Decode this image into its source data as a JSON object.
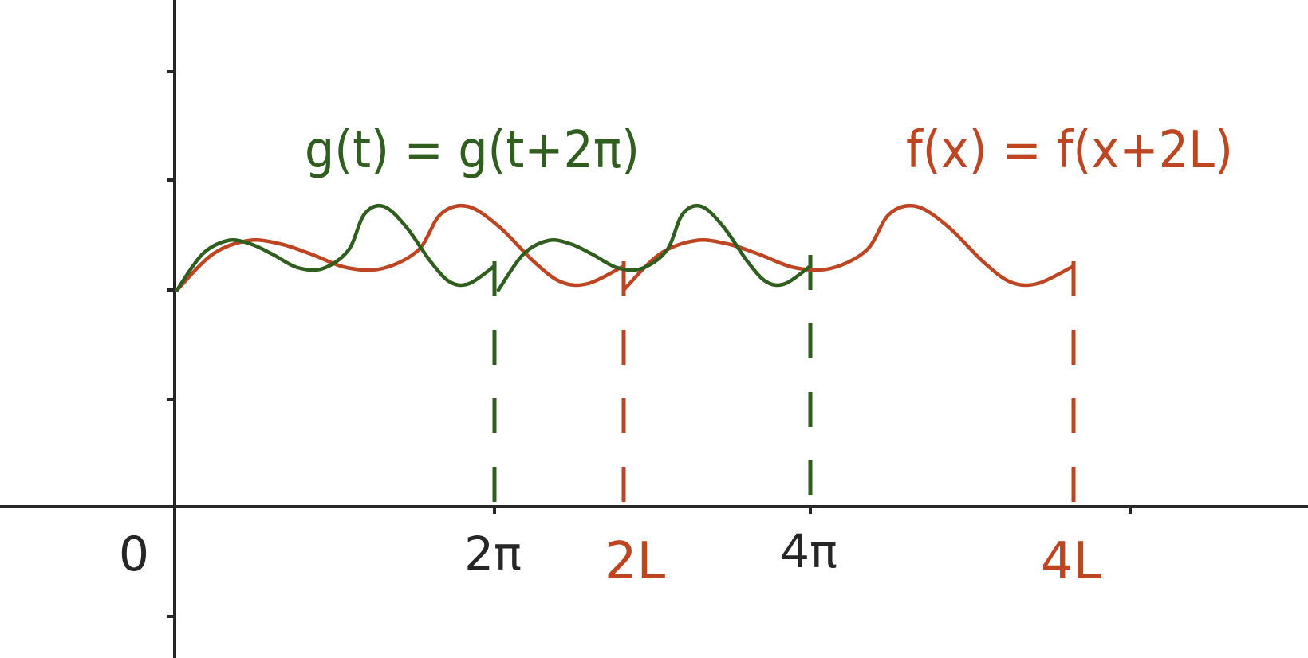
{
  "labels": {
    "origin": "0",
    "g_period_tick": "2π",
    "g_double_period_tick": "4π",
    "f_period_tick": "2L",
    "f_double_period_tick": "4L",
    "g_equation": "g(t) = g(t+2π)",
    "f_equation": "f(x) = f(x+2L)"
  },
  "colors": {
    "axis": "#262626",
    "g_curve": "#2f5e1e",
    "f_curve": "#bd4522",
    "tick_text": "#262626"
  }
}
